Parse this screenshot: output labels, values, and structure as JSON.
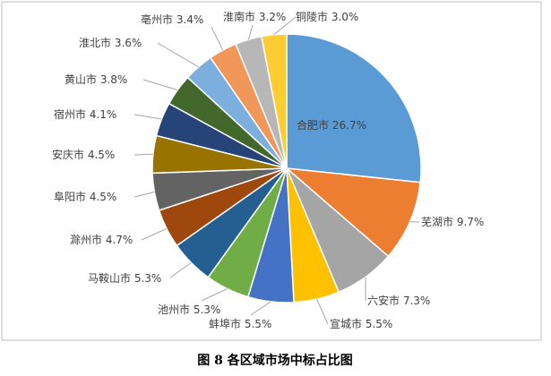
{
  "chart_data": {
    "type": "pie",
    "caption": "图 8   各区域市场中标占比图",
    "categories": [
      "合肥市",
      "芜湖市",
      "六安市",
      "宣城市",
      "蚌埠市",
      "池州市",
      "马鞍山市",
      "滁州市",
      "阜阳市",
      "安庆市",
      "宿州市",
      "黄山市",
      "淮北市",
      "亳州市",
      "淮南市",
      "铜陵市"
    ],
    "values": [
      26.7,
      9.7,
      7.3,
      5.5,
      5.5,
      5.3,
      5.3,
      4.7,
      4.5,
      4.5,
      4.1,
      3.8,
      3.6,
      3.4,
      3.2,
      3.0
    ],
    "value_labels": [
      "26.7%",
      "9.7%",
      "7.3%",
      "5.5%",
      "5.5%",
      "5.3%",
      "5.3%",
      "4.7%",
      "4.5%",
      "4.5%",
      "4.1%",
      "3.8%",
      "3.6%",
      "3.4%",
      "3.2%",
      "3.0%"
    ],
    "colors": [
      "#5b9bd5",
      "#ed7d31",
      "#a5a5a5",
      "#ffc000",
      "#4472c4",
      "#70ad47",
      "#255e91",
      "#9e480e",
      "#636363",
      "#997300",
      "#264478",
      "#43682b",
      "#7cafdd",
      "#f1975a",
      "#b7b7b7",
      "#ffcd33"
    ]
  }
}
